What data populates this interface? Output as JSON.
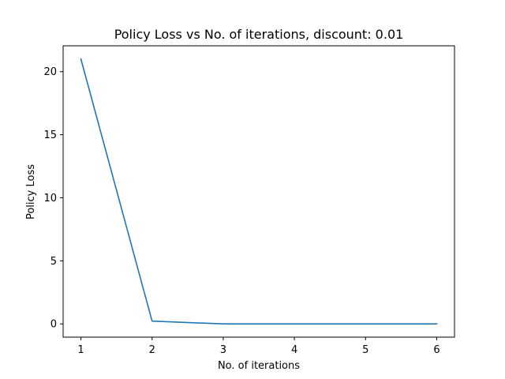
{
  "chart_data": {
    "type": "line",
    "title": "Policy Loss vs No. of iterations, discount: 0.01",
    "xlabel": "No. of iterations",
    "ylabel": "Policy Loss",
    "x": [
      1,
      2,
      3,
      4,
      5,
      6
    ],
    "series": [
      {
        "values": [
          21.0,
          0.22,
          0.0,
          0.0,
          0.0,
          0.0
        ],
        "color": "#1f77b4"
      }
    ],
    "xlim": [
      0.75,
      6.25
    ],
    "ylim": [
      -1.05,
      22.05
    ],
    "xticks": [
      1,
      2,
      3,
      4,
      5,
      6
    ],
    "yticks": [
      0,
      5,
      10,
      15,
      20
    ],
    "grid": false,
    "legend": "none"
  }
}
